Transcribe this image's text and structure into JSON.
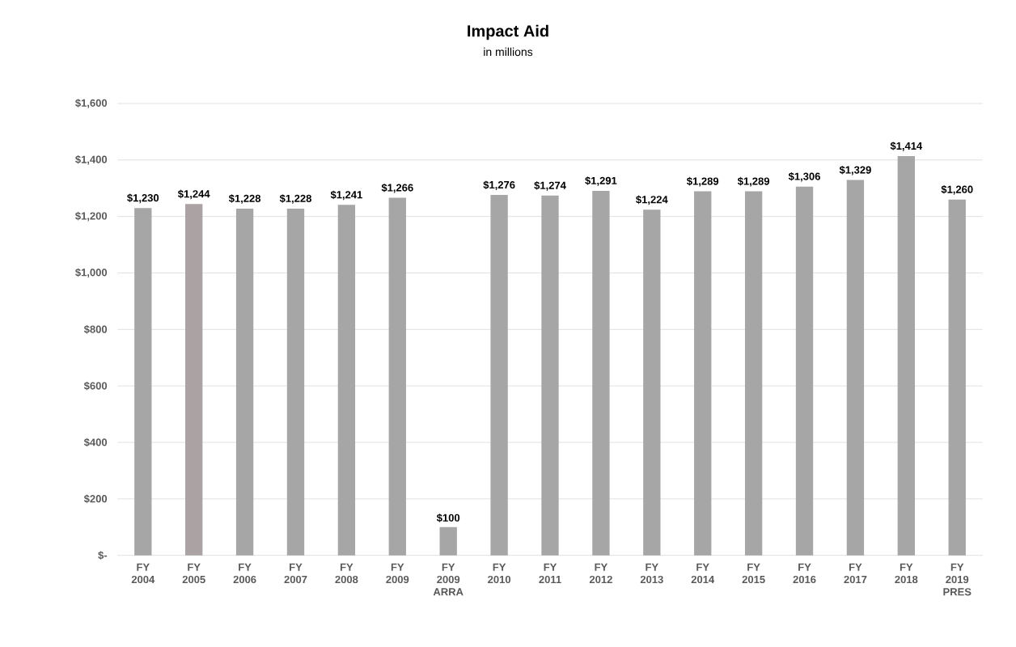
{
  "chart_data": {
    "type": "bar",
    "title": "Impact Aid",
    "subtitle": "in millions",
    "categories": [
      "FY 2004",
      "FY 2005",
      "FY 2006",
      "FY 2007",
      "FY 2008",
      "FY 2009",
      "FY 2009 ARRA",
      "FY 2010",
      "FY 2011",
      "FY 2012",
      "FY 2013",
      "FY 2014",
      "FY 2015",
      "FY 2016",
      "FY 2017",
      "FY 2018",
      "FY 2019 PRES"
    ],
    "values": [
      1230,
      1244,
      1228,
      1228,
      1241,
      1266,
      100,
      1276,
      1274,
      1291,
      1224,
      1289,
      1289,
      1306,
      1329,
      1414,
      1260
    ],
    "value_labels": [
      "$1,230",
      "$1,244",
      "$1,228",
      "$1,228",
      "$1,241",
      "$1,266",
      "$100",
      "$1,276",
      "$1,274",
      "$1,291",
      "$1,224",
      "$1,289",
      "$1,289",
      "$1,306",
      "$1,329",
      "$1,414",
      "$1,260"
    ],
    "colors": [
      "#a6a6a6",
      "#aba3a3",
      "#a6a6a6",
      "#a6a6a6",
      "#a6a6a6",
      "#a6a6a6",
      "#a6a6a6",
      "#a6a6a6",
      "#a6a6a6",
      "#a6a6a6",
      "#a6a6a6",
      "#a6a6a6",
      "#a6a6a6",
      "#a6a6a6",
      "#a6a6a6",
      "#a6a6a6",
      "#a6a6a6"
    ],
    "ylim": [
      0,
      1600
    ],
    "yticks": [
      {
        "value": 0,
        "label": "$-"
      },
      {
        "value": 200,
        "label": "$200"
      },
      {
        "value": 400,
        "label": "$400"
      },
      {
        "value": 600,
        "label": "$600"
      },
      {
        "value": 800,
        "label": "$800"
      },
      {
        "value": 1000,
        "label": "$1,000"
      },
      {
        "value": 1200,
        "label": "$1,200"
      },
      {
        "value": 1400,
        "label": "$1,400"
      },
      {
        "value": 1600,
        "label": "$1,600"
      }
    ],
    "grid": "y"
  }
}
